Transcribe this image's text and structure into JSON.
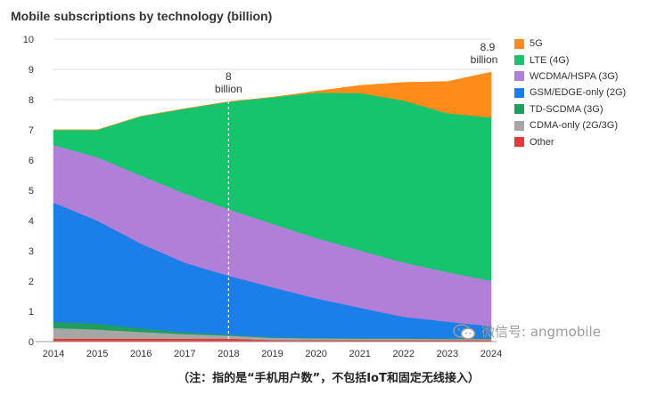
{
  "chart_data": {
    "type": "area",
    "stacked": true,
    "title": "Mobile subscriptions by technology (billion)",
    "x": [
      2014,
      2015,
      2016,
      2017,
      2018,
      2019,
      2020,
      2021,
      2022,
      2023,
      2024
    ],
    "ylim": [
      0,
      10
    ],
    "yticks": [
      0,
      1,
      2,
      3,
      4,
      5,
      6,
      7,
      8,
      9,
      10
    ],
    "grid": true,
    "legend_position": "right",
    "series": [
      {
        "name": "Other",
        "color": "#e8393a",
        "values": [
          0.1,
          0.1,
          0.1,
          0.1,
          0.1,
          0.05,
          0.05,
          0.05,
          0.05,
          0.05,
          0.05
        ]
      },
      {
        "name": "CDMA-only (2G/3G)",
        "color": "#a6a6a6",
        "values": [
          0.35,
          0.3,
          0.22,
          0.15,
          0.1,
          0.08,
          0.06,
          0.05,
          0.05,
          0.04,
          0.04
        ]
      },
      {
        "name": "TD-SCDMA (3G)",
        "color": "#1f9e5e",
        "values": [
          0.2,
          0.2,
          0.12,
          0.06,
          0.03,
          0.02,
          0.02,
          0.02,
          0.02,
          0.02,
          0.02
        ]
      },
      {
        "name": "GSM/EDGE-only (2G)",
        "color": "#1a7fe8",
        "values": [
          3.95,
          3.4,
          2.8,
          2.3,
          1.95,
          1.65,
          1.3,
          1.0,
          0.7,
          0.55,
          0.4
        ]
      },
      {
        "name": "WCDMA/HSPA (3G)",
        "color": "#b07fd8",
        "values": [
          1.9,
          2.1,
          2.25,
          2.29,
          2.2,
          2.1,
          2.0,
          1.9,
          1.8,
          1.64,
          1.5
        ]
      },
      {
        "name": "LTE (4G)",
        "color": "#16c46e",
        "values": [
          0.5,
          0.9,
          1.96,
          2.8,
          3.55,
          4.18,
          4.8,
          5.2,
          5.35,
          5.25,
          5.4
        ]
      },
      {
        "name": "5G",
        "color": "#ff8c1a",
        "values": [
          0,
          0,
          0,
          0,
          0,
          0,
          0.05,
          0.25,
          0.6,
          1.05,
          1.5
        ]
      }
    ],
    "annotations": [
      {
        "x": 2018,
        "value_text": "8",
        "unit_text": "billion",
        "dashed_line": true
      },
      {
        "x": 2024,
        "value_text": "8.9",
        "unit_text": "billion",
        "dashed_line": false
      }
    ]
  },
  "legend": [
    "5G",
    "LTE (4G)",
    "WCDMA/HSPA (3G)",
    "GSM/EDGE-only (2G)",
    "TD-SCDMA (3G)",
    "CDMA-only (2G/3G)",
    "Other"
  ],
  "watermark": {
    "icon": "wechat-icon",
    "text": "微信号: angmobile"
  },
  "caption": "（注：指的是“手机用户数”，不包括IoT和固定无线接入）"
}
